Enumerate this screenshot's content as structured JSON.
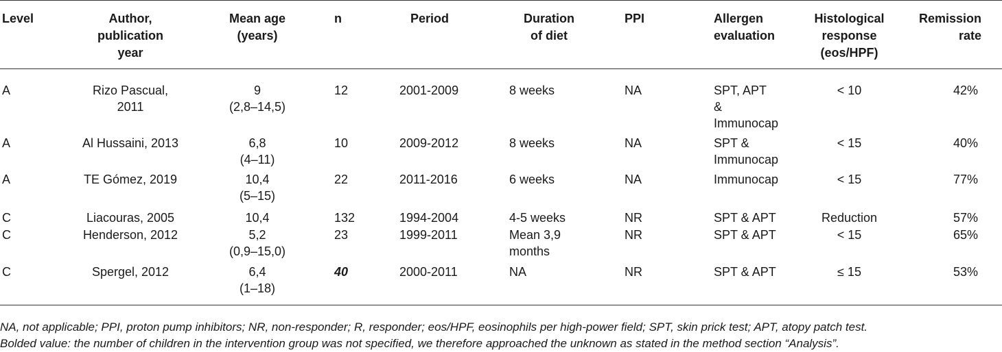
{
  "headers": {
    "level": "Level",
    "author": [
      "Author,",
      "publication",
      "year"
    ],
    "age": [
      "Mean age",
      "(years)"
    ],
    "n": "n",
    "period": "Period",
    "duration": [
      "Duration",
      "of diet"
    ],
    "ppi": "PPI",
    "allergen": [
      "Allergen",
      "evaluation"
    ],
    "histo": [
      "Histological",
      "response",
      "(eos/HPF)"
    ],
    "remission": [
      "Remission",
      "rate"
    ]
  },
  "rows": [
    {
      "level": "A",
      "author": [
        "Rizo Pascual,",
        "2011"
      ],
      "age": [
        "9",
        "(2,8–14,5)"
      ],
      "n": "12",
      "period": "2001-2009",
      "duration": [
        "8 weeks"
      ],
      "ppi": "NA",
      "allergen": [
        "SPT, APT",
        "&",
        "Immunocap"
      ],
      "histo": "< 10",
      "remission": "42%"
    },
    {
      "level": "A",
      "author": [
        "Al Hussaini, 2013"
      ],
      "age": [
        "6,8",
        "(4–11)"
      ],
      "n": "10",
      "period": "2009-2012",
      "duration": [
        "8 weeks"
      ],
      "ppi": "NA",
      "allergen": [
        "SPT &",
        "Immunocap"
      ],
      "histo": "< 15",
      "remission": "40%"
    },
    {
      "level": "A",
      "author": [
        "TE Gómez, 2019"
      ],
      "age": [
        "10,4",
        "(5–15)"
      ],
      "n": "22",
      "period": "2011-2016",
      "duration": [
        "6 weeks"
      ],
      "ppi": "NA",
      "allergen": [
        "Immunocap"
      ],
      "histo": "< 15",
      "remission": "77%"
    },
    {
      "level": "C",
      "author": [
        "Liacouras, 2005"
      ],
      "age": [
        "10,4"
      ],
      "n": "132",
      "period": "1994-2004",
      "duration": [
        "4-5 weeks"
      ],
      "ppi": "NR",
      "allergen": [
        "SPT & APT"
      ],
      "histo": "Reduction",
      "remission": "57%"
    },
    {
      "level": "C",
      "author": [
        "Henderson, 2012"
      ],
      "age": [
        "5,2",
        "(0,9–15,0)"
      ],
      "n": "23",
      "period": "1999-2011",
      "duration": [
        "Mean 3,9",
        "months"
      ],
      "ppi": "NR",
      "allergen": [
        "SPT & APT"
      ],
      "histo": "< 15",
      "remission": "65%"
    },
    {
      "level": "C",
      "author": [
        "Spergel, 2012"
      ],
      "age": [
        "6,4",
        "(1–18)"
      ],
      "n": "40",
      "period": "2000-2011",
      "duration": [
        "NA"
      ],
      "ppi": "NR",
      "allergen": [
        "SPT & APT"
      ],
      "histo": "≤ 15",
      "remission": "53%"
    }
  ],
  "notes": {
    "line1": "NA, not applicable; PPI, proton pump inhibitors; NR, non-responder; R, responder; eos/HPF, eosinophils per high-power field; SPT, skin prick test; APT, atopy patch test.",
    "line2": "Bolded value: the number of children in the intervention group was not specified, we therefore approached the unknown as stated in the method section “Analysis”."
  }
}
